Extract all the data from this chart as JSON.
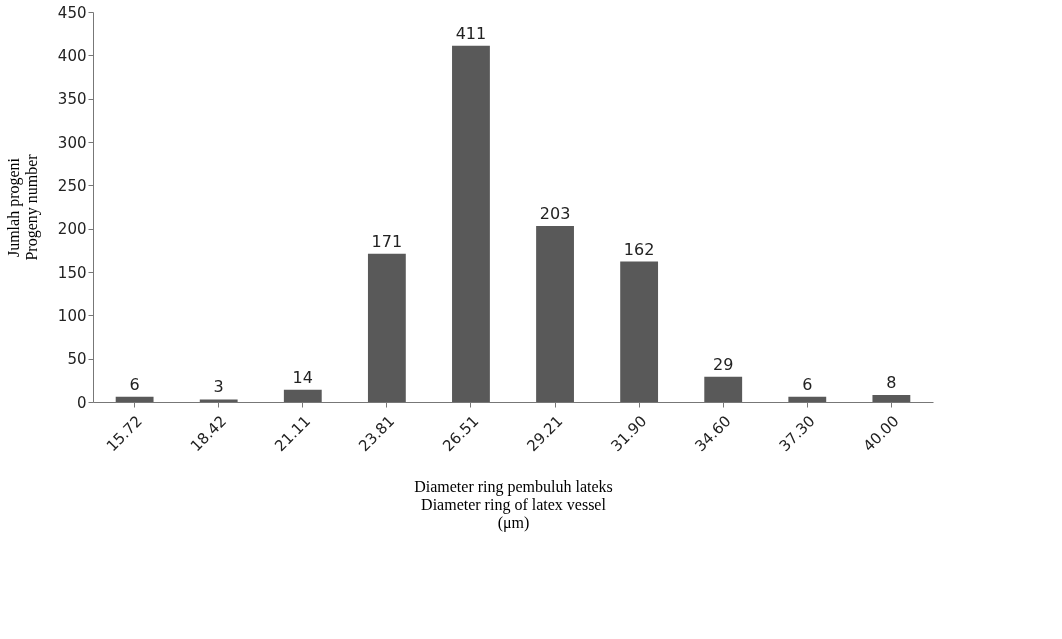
{
  "chart_data": {
    "type": "bar",
    "categories": [
      "15.72",
      "18.42",
      "21.11",
      "23.81",
      "26.51",
      "29.21",
      "31.90",
      "34.60",
      "37.30",
      "40.00"
    ],
    "values": [
      6,
      3,
      14,
      171,
      411,
      203,
      162,
      29,
      6,
      8
    ],
    "color": "#595959",
    "ylim": [
      0,
      450
    ],
    "yticks": [
      0,
      50,
      100,
      150,
      200,
      250,
      300,
      350,
      400,
      450
    ],
    "xlabel": "Diameter ring pembuluh lateks\nDiameter ring of latex vessel\n(μm)",
    "ylabel": "Jumlah progeni\nProgeny number",
    "data_labels": true,
    "grid": false
  }
}
